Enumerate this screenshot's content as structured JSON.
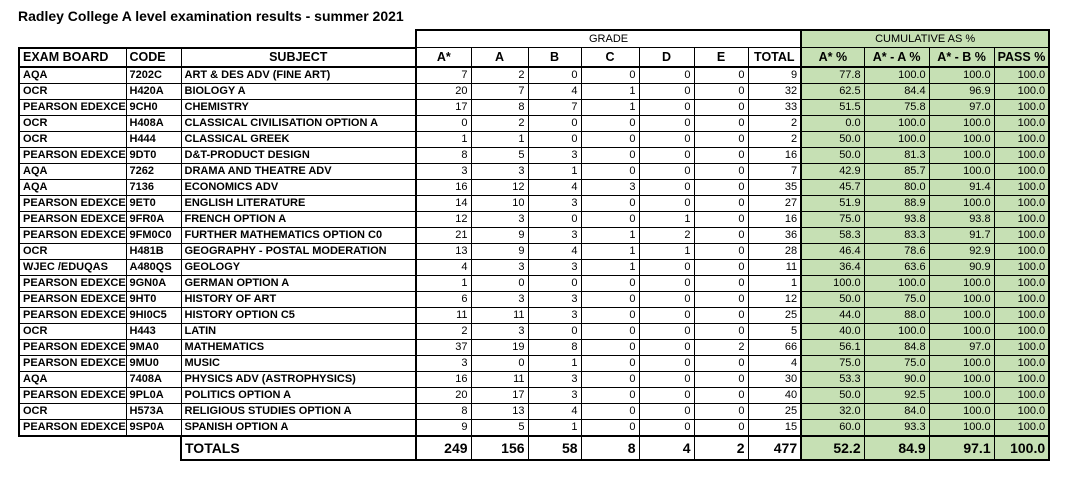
{
  "title": "Radley College A level examination results - summer 2021",
  "colors": {
    "green": "#c6e0b4",
    "border": "#000000",
    "background": "#ffffff"
  },
  "table": {
    "group_headers": {
      "grade": "GRADE",
      "cumulative": "CUMULATIVE AS %"
    },
    "columns": [
      "EXAM BOARD",
      "CODE",
      "SUBJECT",
      "A*",
      "A",
      "B",
      "C",
      "D",
      "E",
      "TOTAL",
      "A* %",
      "A* - A %",
      "A* - B %",
      "PASS %"
    ],
    "rows": [
      {
        "board": "AQA",
        "code": "7202C",
        "subject": "ART & DES ADV (FINE ART)",
        "grades": [
          7,
          2,
          0,
          0,
          0,
          0
        ],
        "total": 9,
        "cum": [
          "77.8",
          "100.0",
          "100.0",
          "100.0"
        ]
      },
      {
        "board": "OCR",
        "code": "H420A",
        "subject": "BIOLOGY A",
        "grades": [
          20,
          7,
          4,
          1,
          0,
          0
        ],
        "total": 32,
        "cum": [
          "62.5",
          "84.4",
          "96.9",
          "100.0"
        ]
      },
      {
        "board": "PEARSON EDEXCEL",
        "code": "9CH0",
        "subject": "CHEMISTRY",
        "grades": [
          17,
          8,
          7,
          1,
          0,
          0
        ],
        "total": 33,
        "cum": [
          "51.5",
          "75.8",
          "97.0",
          "100.0"
        ]
      },
      {
        "board": "OCR",
        "code": "H408A",
        "subject": "CLASSICAL CIVILISATION OPTION A",
        "grades": [
          0,
          2,
          0,
          0,
          0,
          0
        ],
        "total": 2,
        "cum": [
          "0.0",
          "100.0",
          "100.0",
          "100.0"
        ]
      },
      {
        "board": "OCR",
        "code": "H444",
        "subject": "CLASSICAL GREEK",
        "grades": [
          1,
          1,
          0,
          0,
          0,
          0
        ],
        "total": 2,
        "cum": [
          "50.0",
          "100.0",
          "100.0",
          "100.0"
        ]
      },
      {
        "board": "PEARSON EDEXCEL",
        "code": "9DT0",
        "subject": "D&T-PRODUCT DESIGN",
        "grades": [
          8,
          5,
          3,
          0,
          0,
          0
        ],
        "total": 16,
        "cum": [
          "50.0",
          "81.3",
          "100.0",
          "100.0"
        ]
      },
      {
        "board": "AQA",
        "code": "7262",
        "subject": "DRAMA AND THEATRE ADV",
        "grades": [
          3,
          3,
          1,
          0,
          0,
          0
        ],
        "total": 7,
        "cum": [
          "42.9",
          "85.7",
          "100.0",
          "100.0"
        ]
      },
      {
        "board": "AQA",
        "code": "7136",
        "subject": "ECONOMICS ADV",
        "grades": [
          16,
          12,
          4,
          3,
          0,
          0
        ],
        "total": 35,
        "cum": [
          "45.7",
          "80.0",
          "91.4",
          "100.0"
        ]
      },
      {
        "board": "PEARSON EDEXCEL",
        "code": "9ET0",
        "subject": "ENGLISH LITERATURE",
        "grades": [
          14,
          10,
          3,
          0,
          0,
          0
        ],
        "total": 27,
        "cum": [
          "51.9",
          "88.9",
          "100.0",
          "100.0"
        ]
      },
      {
        "board": "PEARSON EDEXCEL",
        "code": "9FR0A",
        "subject": "FRENCH OPTION A",
        "grades": [
          12,
          3,
          0,
          0,
          1,
          0
        ],
        "total": 16,
        "cum": [
          "75.0",
          "93.8",
          "93.8",
          "100.0"
        ]
      },
      {
        "board": "PEARSON EDEXCEL",
        "code": "9FM0C0",
        "subject": "FURTHER MATHEMATICS OPTION C0",
        "grades": [
          21,
          9,
          3,
          1,
          2,
          0
        ],
        "total": 36,
        "cum": [
          "58.3",
          "83.3",
          "91.7",
          "100.0"
        ]
      },
      {
        "board": "OCR",
        "code": "H481B",
        "subject": "GEOGRAPHY - POSTAL MODERATION",
        "grades": [
          13,
          9,
          4,
          1,
          1,
          0
        ],
        "total": 28,
        "cum": [
          "46.4",
          "78.6",
          "92.9",
          "100.0"
        ]
      },
      {
        "board": "WJEC /EDUQAS",
        "code": "A480QS",
        "subject": "GEOLOGY",
        "grades": [
          4,
          3,
          3,
          1,
          0,
          0
        ],
        "total": 11,
        "cum": [
          "36.4",
          "63.6",
          "90.9",
          "100.0"
        ]
      },
      {
        "board": "PEARSON EDEXCEL",
        "code": "9GN0A",
        "subject": "GERMAN OPTION A",
        "grades": [
          1,
          0,
          0,
          0,
          0,
          0
        ],
        "total": 1,
        "cum": [
          "100.0",
          "100.0",
          "100.0",
          "100.0"
        ]
      },
      {
        "board": "PEARSON EDEXCEL",
        "code": "9HT0",
        "subject": "HISTORY OF ART",
        "grades": [
          6,
          3,
          3,
          0,
          0,
          0
        ],
        "total": 12,
        "cum": [
          "50.0",
          "75.0",
          "100.0",
          "100.0"
        ]
      },
      {
        "board": "PEARSON EDEXCEL",
        "code": "9HI0C5",
        "subject": "HISTORY OPTION C5",
        "grades": [
          11,
          11,
          3,
          0,
          0,
          0
        ],
        "total": 25,
        "cum": [
          "44.0",
          "88.0",
          "100.0",
          "100.0"
        ]
      },
      {
        "board": "OCR",
        "code": "H443",
        "subject": "LATIN",
        "grades": [
          2,
          3,
          0,
          0,
          0,
          0
        ],
        "total": 5,
        "cum": [
          "40.0",
          "100.0",
          "100.0",
          "100.0"
        ]
      },
      {
        "board": "PEARSON EDEXCEL",
        "code": "9MA0",
        "subject": "MATHEMATICS",
        "grades": [
          37,
          19,
          8,
          0,
          0,
          2
        ],
        "total": 66,
        "cum": [
          "56.1",
          "84.8",
          "97.0",
          "100.0"
        ]
      },
      {
        "board": "PEARSON EDEXCEL",
        "code": "9MU0",
        "subject": "MUSIC",
        "grades": [
          3,
          0,
          1,
          0,
          0,
          0
        ],
        "total": 4,
        "cum": [
          "75.0",
          "75.0",
          "100.0",
          "100.0"
        ]
      },
      {
        "board": "AQA",
        "code": "7408A",
        "subject": "PHYSICS ADV (ASTROPHYSICS)",
        "grades": [
          16,
          11,
          3,
          0,
          0,
          0
        ],
        "total": 30,
        "cum": [
          "53.3",
          "90.0",
          "100.0",
          "100.0"
        ]
      },
      {
        "board": "PEARSON EDEXCEL",
        "code": "9PL0A",
        "subject": "POLITICS OPTION A",
        "grades": [
          20,
          17,
          3,
          0,
          0,
          0
        ],
        "total": 40,
        "cum": [
          "50.0",
          "92.5",
          "100.0",
          "100.0"
        ]
      },
      {
        "board": "OCR",
        "code": "H573A",
        "subject": "RELIGIOUS STUDIES OPTION A",
        "grades": [
          8,
          13,
          4,
          0,
          0,
          0
        ],
        "total": 25,
        "cum": [
          "32.0",
          "84.0",
          "100.0",
          "100.0"
        ]
      },
      {
        "board": "PEARSON EDEXCEL",
        "code": "9SP0A",
        "subject": "SPANISH OPTION A",
        "grades": [
          9,
          5,
          1,
          0,
          0,
          0
        ],
        "total": 15,
        "cum": [
          "60.0",
          "93.3",
          "100.0",
          "100.0"
        ]
      }
    ],
    "totals": {
      "label": "TOTALS",
      "grades": [
        249,
        156,
        58,
        8,
        4,
        2
      ],
      "total": 477,
      "cum": [
        "52.2",
        "84.9",
        "97.1",
        "100.0"
      ]
    }
  }
}
